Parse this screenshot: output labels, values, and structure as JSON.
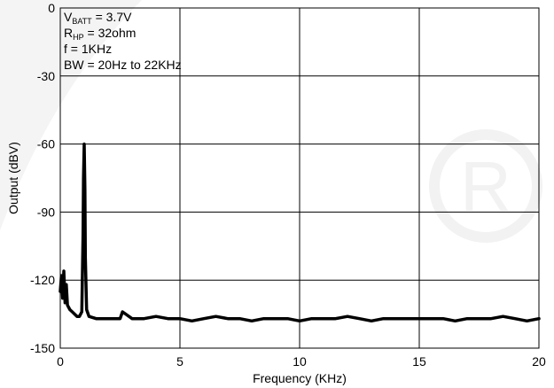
{
  "chart_data": {
    "type": "line",
    "title": "",
    "xlabel": "Frequency (KHz)",
    "ylabel": "Output (dBV)",
    "xlim": [
      0,
      20
    ],
    "ylim": [
      -150,
      0
    ],
    "xticks": [
      "0",
      "5",
      "10",
      "15",
      "20"
    ],
    "yticks": [
      "0",
      "-30",
      "-60",
      "-90",
      "-120",
      "-150"
    ],
    "grid": true,
    "annotations": {
      "vbatt": {
        "prefix": "V",
        "sub": "BATT",
        "suffix": " = 3.7V"
      },
      "rhp": {
        "prefix": "R",
        "sub": "HP",
        "suffix": " =  32ohm"
      },
      "freq": "f = 1KHz",
      "bw": "BW = 20Hz to 22KHz"
    },
    "series": [
      {
        "color": "#000000",
        "x": [
          0.0,
          0.05,
          0.1,
          0.15,
          0.2,
          0.25,
          0.3,
          0.4,
          0.5,
          0.6,
          0.7,
          0.8,
          0.9,
          0.95,
          0.97,
          1.0,
          1.03,
          1.05,
          1.1,
          1.2,
          1.5,
          2,
          2.5,
          2.6,
          3,
          3.5,
          4,
          4.5,
          5,
          5.5,
          6,
          6.5,
          7,
          7.5,
          8,
          8.5,
          9,
          9.5,
          10,
          10.5,
          11,
          11.5,
          12,
          12.5,
          13,
          13.5,
          14,
          14.5,
          15,
          15.5,
          16,
          16.5,
          17,
          17.5,
          18,
          18.5,
          19,
          19.5,
          20
        ],
        "y": [
          -125,
          -118,
          -128,
          -116,
          -130,
          -122,
          -131,
          -133,
          -134,
          -135,
          -136,
          -136,
          -134,
          -100,
          -75,
          -60,
          -80,
          -110,
          -133,
          -136,
          -137,
          -137,
          -137,
          -134,
          -137,
          -137,
          -136,
          -137,
          -137,
          -138,
          -137,
          -136,
          -137,
          -137,
          -138,
          -137,
          -137,
          -137,
          -138,
          -137,
          -137,
          -137,
          -136,
          -137,
          -138,
          -137,
          -137,
          -137,
          -137,
          -137,
          -137,
          -138,
          -137,
          -137,
          -137,
          -136,
          -137,
          -138,
          -137
        ]
      }
    ]
  }
}
